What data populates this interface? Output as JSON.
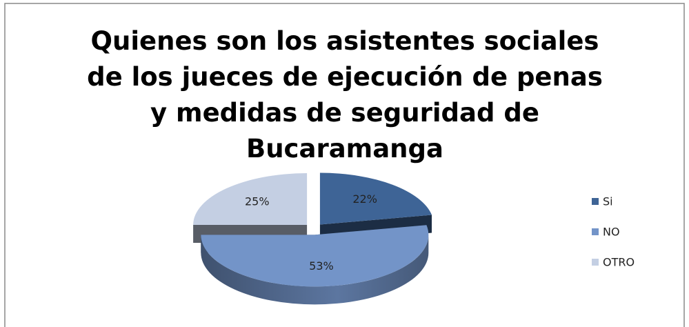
{
  "chart_data": {
    "type": "pie",
    "title": "Quienes son los asistentes sociales de los jueces de ejecución de penas y medidas de seguridad de Bucaramanga",
    "categories": [
      "Si",
      "NO",
      "OTRO"
    ],
    "values": [
      22,
      53,
      25
    ],
    "value_labels": [
      "22%",
      "53%",
      "25%"
    ],
    "colors": [
      "#3e6496",
      "#7394c8",
      "#c4cfe3"
    ],
    "legend": "right"
  }
}
